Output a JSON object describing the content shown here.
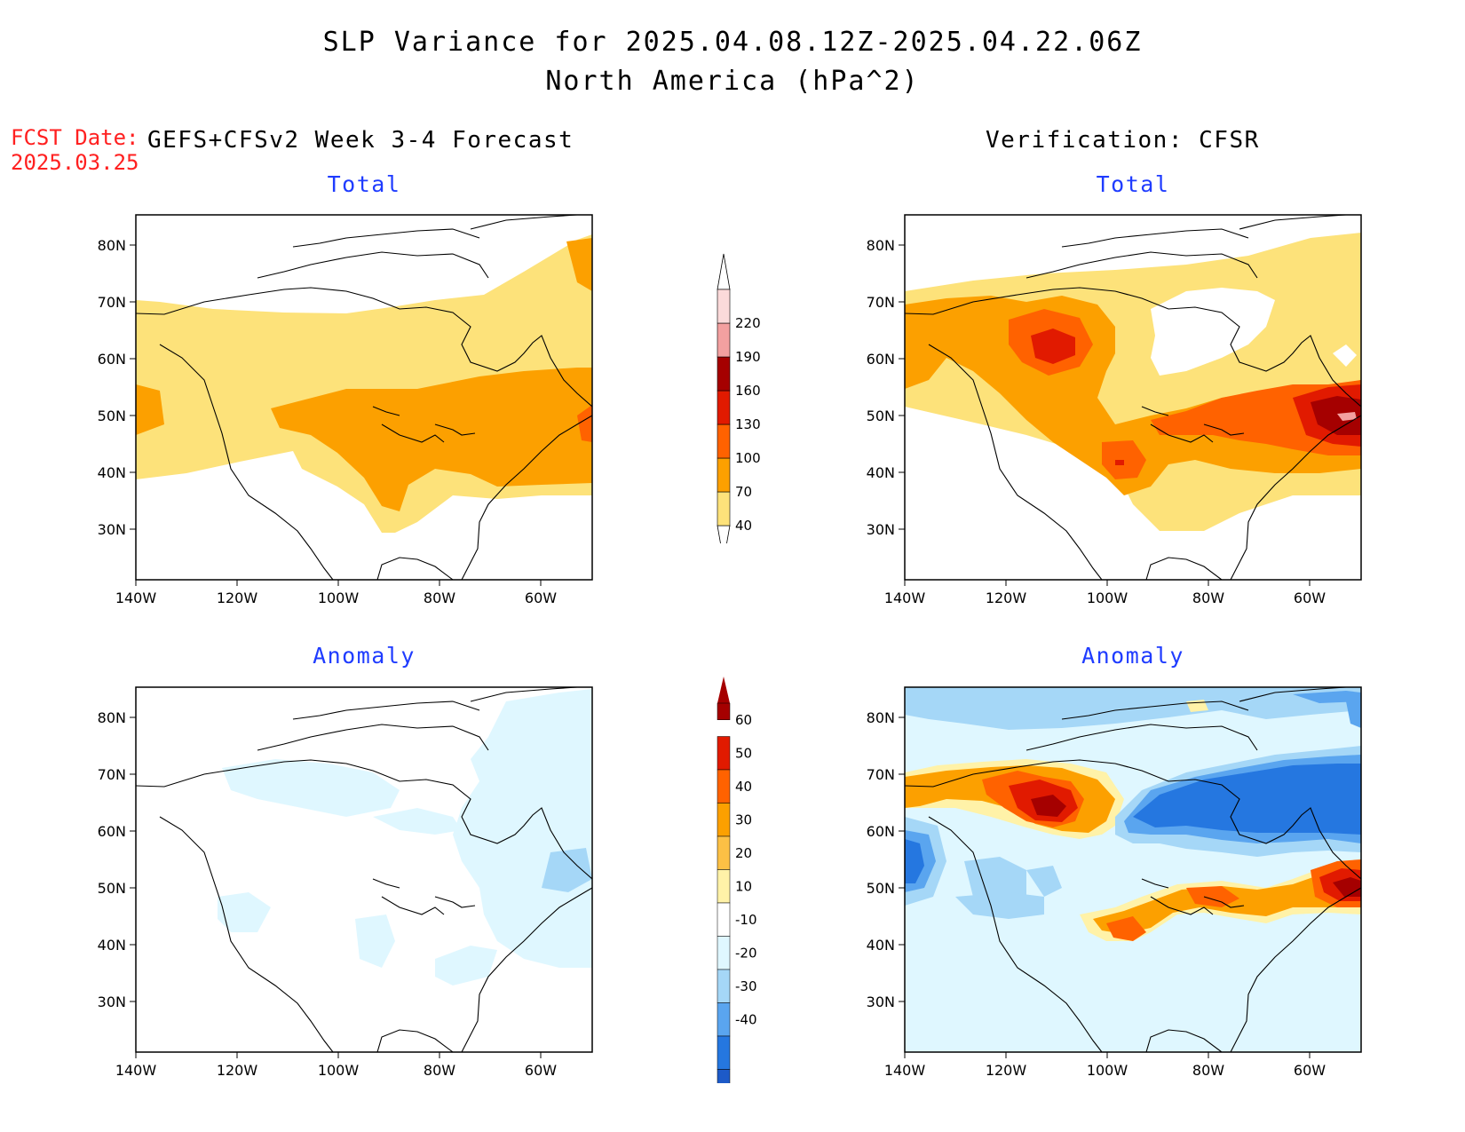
{
  "header": {
    "title_line1": "SLP Variance for 2025.04.08.12Z-2025.04.22.06Z",
    "title_line2": "North America (hPa^2)",
    "fcst_date_label": "FCST Date:",
    "fcst_date_value": "2025.03.25",
    "left_column_title": "GEFS+CFSv2 Week 3-4 Forecast",
    "right_column_title": "Verification: CFSR"
  },
  "panels": {
    "fcst_total": {
      "title": "Total"
    },
    "fcst_anomaly": {
      "title": "Anomaly"
    },
    "verif_total": {
      "title": "Total"
    },
    "verif_anomaly": {
      "title": "Anomaly"
    }
  },
  "axes": {
    "lat_ticks": [
      "80N",
      "70N",
      "60N",
      "50N",
      "40N",
      "30N"
    ],
    "lon_ticks": [
      "140W",
      "120W",
      "100W",
      "80W",
      "60W"
    ]
  },
  "colorbar_total": {
    "labels": [
      "40",
      "70",
      "100",
      "130",
      "160",
      "190",
      "220"
    ],
    "colors": [
      "#fde27a",
      "#fca000",
      "#ff6200",
      "#e11a00",
      "#a50000",
      "#f3a0a0",
      "#fbdada"
    ]
  },
  "colorbar_anomaly": {
    "labels": [
      "60",
      "50",
      "40",
      "30",
      "20",
      "10",
      "-10",
      "-20",
      "-30",
      "-40"
    ],
    "colors": [
      "#a50000",
      "#e11a00",
      "#ff6200",
      "#fca000",
      "#fcc045",
      "#fff2a8",
      "#ffffff",
      "#dff7ff",
      "#a5d7f7",
      "#5aa5ef",
      "#2577e0",
      "#1d5ac8"
    ]
  }
}
